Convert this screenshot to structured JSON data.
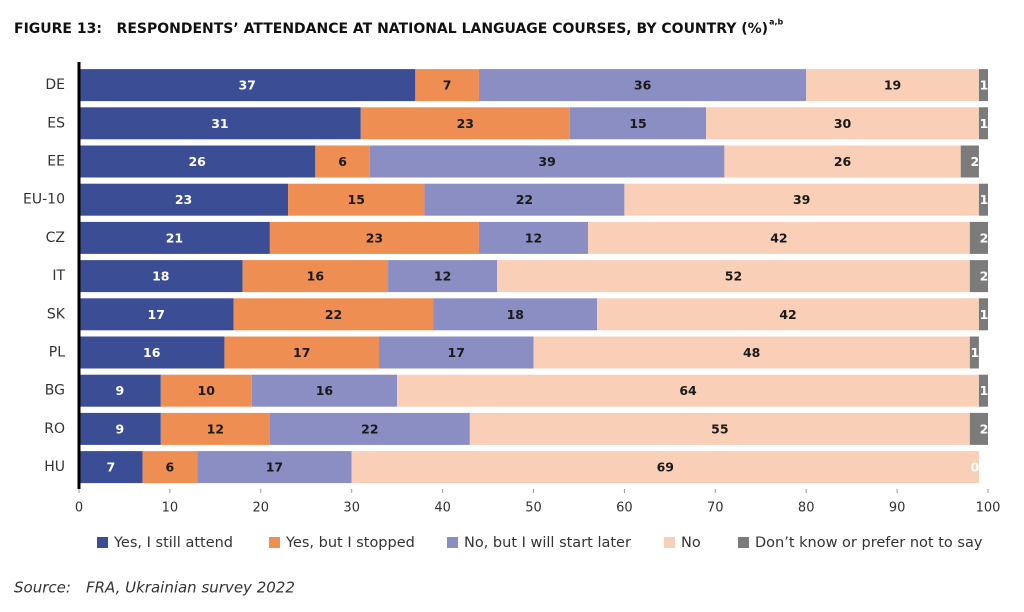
{
  "chart_data": {
    "type": "stacked-bar-horizontal",
    "title": "FIGURE 13:   RESPONDENTS’ ATTENDANCE AT NATIONAL LANGUAGE COURSES, BY COUNTRY (%)",
    "title_superscript": "a,b",
    "categories": [
      "DE",
      "ES",
      "EE",
      "EU-10",
      "CZ",
      "IT",
      "SK",
      "PL",
      "BG",
      "RO",
      "HU"
    ],
    "series": [
      {
        "name": "Yes, I still attend",
        "color": "#3b4d94",
        "label_color": "#ffffff",
        "values": [
          37,
          31,
          26,
          23,
          21,
          18,
          17,
          16,
          9,
          9,
          7
        ]
      },
      {
        "name": "Yes, but I stopped",
        "color": "#ef8e52",
        "label_color": "#1a1a1a",
        "values": [
          7,
          23,
          6,
          15,
          23,
          16,
          22,
          17,
          10,
          12,
          6
        ]
      },
      {
        "name": "No, but I will start later",
        "color": "#8a8ec3",
        "label_color": "#1a1a1a",
        "values": [
          36,
          15,
          39,
          22,
          12,
          12,
          18,
          17,
          16,
          22,
          17
        ]
      },
      {
        "name": "No",
        "color": "#f9d0b7",
        "label_color": "#1a1a1a",
        "values": [
          19,
          30,
          26,
          39,
          42,
          52,
          42,
          48,
          64,
          55,
          69
        ]
      },
      {
        "name": "Don’t know or prefer not to say",
        "color": "#7b7b7b",
        "label_color": "#ffffff",
        "values": [
          1,
          1,
          2,
          1,
          2,
          2,
          1,
          1,
          1,
          2,
          0
        ]
      }
    ],
    "xlim": [
      0,
      100
    ],
    "xticks": [
      0,
      10,
      20,
      30,
      40,
      50,
      60,
      70,
      80,
      90,
      100
    ],
    "legend": "bottom",
    "source_label": "Source:",
    "source_text": "FRA, Ukrainian survey 2022"
  }
}
